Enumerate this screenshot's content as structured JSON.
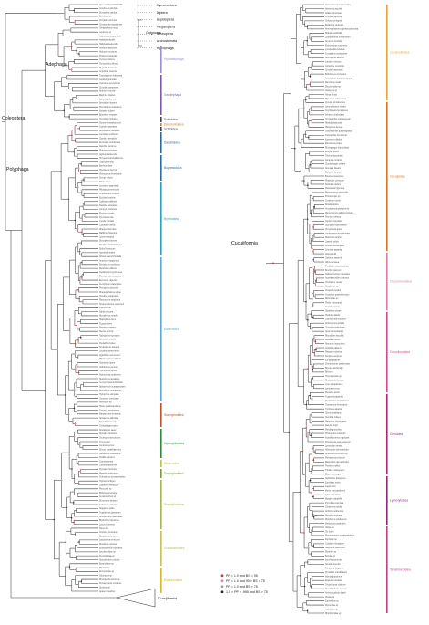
{
  "node_labels": {
    "coleoptera": "Coleoptera",
    "adephaga": "Adephaga",
    "polyphaga": "Polyphaga",
    "cucujiformia": "Cucujiformia"
  },
  "outgroups": {
    "neuropterida": [
      "Hymenoptera",
      "Diptera",
      "Lepidoptera",
      "Megaloptera",
      "Neuroptera",
      "Archostemata",
      "Myxophaga"
    ],
    "bracket_label": "Outgroups",
    "collapsed_label": "Cucujiformia"
  },
  "left_clades": [
    {
      "name": "Hydradephaga",
      "color": "#9b8fd0"
    },
    {
      "name": "Geadephaga",
      "color": "#7b5aa6"
    },
    {
      "name": "Scirtoidea",
      "color": "#444444"
    },
    {
      "name": "Derodontoidea",
      "color": "#d08020"
    },
    {
      "name": "Scirtoidea",
      "color": "#444444"
    },
    {
      "name": "Dascilloidea",
      "color": "#2a6aa8"
    },
    {
      "name": "Buprestoidea",
      "color": "#2a6aa8"
    },
    {
      "name": "Byrrhoidea",
      "color": "#26a3b5"
    },
    {
      "name": "Elateroidea",
      "color": "#5aa8d8"
    },
    {
      "name": "Staphylinoidea",
      "color": "#c0522e"
    },
    {
      "name": "Hydrophiloidea",
      "color": "#2e8b3e"
    },
    {
      "name": "Histeroidea",
      "color": "#b9c24a"
    },
    {
      "name": "Staphylinoidea",
      "color": "#7a9a3a"
    },
    {
      "name": "Staphylinoidea",
      "color": "#a2b84a"
    },
    {
      "name": "Scarabaeoidea",
      "color": "#c8c050"
    },
    {
      "name": "Bostrichoidea",
      "color": "#d8b530"
    }
  ],
  "right_clades": [
    {
      "name": "Coccinelloidea",
      "color": "#e8a43a"
    },
    {
      "name": "Cucujoidea",
      "color": "#d8731f"
    },
    {
      "name": "Chrysomeloidea",
      "color": "#e27aa6"
    },
    {
      "name": "Curculionoidea",
      "color": "#d4469a"
    },
    {
      "name": "Cleroidea",
      "color": "#b0247a"
    },
    {
      "name": "Lymexyloidea",
      "color": "#8a2a7a"
    },
    {
      "name": "Tenebrionoidea",
      "color": "#c53d8d"
    }
  ],
  "legend": [
    {
      "label": "PP = 1.0 and BS = 95",
      "color": "#c0392b"
    },
    {
      "label": "PP = 1.0 and 90 > BS > 75",
      "color": "#e08a8a"
    },
    {
      "label": "PP = 1.0 and BS < 75",
      "color": "#9aa0a6"
    },
    {
      "label": "1.0 > PP > .995 and BS > 75",
      "color": "#2c2c2c"
    }
  ],
  "left_tips": [
    "Apis mellifera NC001566",
    "Anopheles gambiae",
    "Drosophila yakuba",
    "Bombyx mori",
    "Corydalis cornutus",
    "Chrysoperla nipponensis",
    "Tetraphalerus bruchi",
    "Lepicerus sp",
    "Hydroscapha granulum",
    "Haliplus ruficollis",
    "Haliplus lineatocollis",
    "Noterus clavicornis",
    "Hydroporus planus",
    "Dytiscus marginalis",
    "Gyrinus marinus",
    "Orectochilus villosus",
    "Hygrobia hermanni",
    "Amphizoa insolens",
    "Trachypachus holmbergi",
    "Carabus granulatus",
    "Calosoma sycophanta",
    "Cicindela campestris",
    "Nebria brevicollis",
    "Elaphrus riparius",
    "Loricera pilicornis",
    "Bembidion lampros",
    "Pterostichus melanarius",
    "Harpalus rufipes",
    "Brachinus crepitans",
    "Omophron limbatum",
    "Scirtes hemisphaericus",
    "Cyphon coarctatus",
    "Derodontus macularis",
    "Laricobius erichsonii",
    "Clambus armadillo",
    "Eucinetus meridionalis",
    "Dascillus cervinus",
    "Rhipicera femorata",
    "Agrilus planipennis",
    "Chrysochroa fulgidissima",
    "Trachys minuta",
    "Byrrhus pilula",
    "Psephenus herricki",
    "Heterocerus fenestratus",
    "Dryops luridus",
    "Elmis aenea",
    "Limnichus pygmaeus",
    "Ptilodactyla serricollis",
    "Chelonarium ornatum",
    "Eulichas funebris",
    "Callirhipis philiberti",
    "Dascillus elongatus",
    "Lampyris noctiluca",
    "Photinus pyralis",
    "Pyrocoelia rufa",
    "Luciola cruciata",
    "Cantharis rustica",
    "Rhagonycha fulva",
    "Malthinus flaveolus",
    "Lycus trabeatus",
    "Dictyoptera aurora",
    "Omalisus fontisbellaquei",
    "Drilus flavescens",
    "Agriotes lineatus",
    "Athous haemorrhoidalis",
    "Ampedus sanguineus",
    "Pyrophorus noctilucus",
    "Melanotus villosus",
    "Cardiophorus gramineus",
    "Throscus dermestoides",
    "Eucnemis capucina",
    "Cerophytum elateroides",
    "Phengodes plumosa",
    "Rhagophthalmus ohbai",
    "Omethes marginatus",
    "Plastocerus angulosus",
    "Sinopyrophorus schimmeli",
    "Lissomus sp",
    "Silpha obscura",
    "Nicrophorus vespillo",
    "Staphylinus olens",
    "Ocypus olens",
    "Paederus riparius",
    "Stenus comma",
    "Tachyporus hypnorum",
    "Aleochara curtula",
    "Pselaphus heisei",
    "Scydmaenus tarsatus",
    "Leiodes cinnamomea",
    "Agathidium seminulum",
    "Ptilium myrmecophilum",
    "Hydraena riparia",
    "Ochthebius minimus",
    "Hydrophilus piceus",
    "Hydrochara caraboides",
    "Helophorus aquaticus",
    "Cercyon haemorrhoidalis",
    "Sphaeridium scarabaeoides",
    "Spercheus emarginatus",
    "Hydrochus elongatus",
    "Georissus crenulatus",
    "Histeridae sp",
    "Hister quadrimaculatus",
    "Saprinus semistriatus",
    "Margarinotus brunneus",
    "Sphaerites glabratus",
    "Syntelia histeroides",
    "Onthophagus taurus",
    "Scarabaeus sacer",
    "Aphodius fimetarius",
    "Geotrupes stercorarius",
    "Trox scaber",
    "Lucanus cervus",
    "Dorcus parallelipipedus",
    "Melolontha melolontha",
    "Popillia japonica",
    "Cetonia aurata",
    "Oryctes nasicornis",
    "Dynastes hercules",
    "Passalus interruptus",
    "Ochodaeus chrysomeloides",
    "Hybosorus illigeri",
    "Glaphyrus serratulae",
    "Pleocoma sp",
    "Bolboceras armiger",
    "Ceratocanthus sp",
    "Dermestes lardarius",
    "Anthrenus verbasci",
    "Attagenus pellio",
    "Trogoderma granarium",
    "Nosodendron fasciculare",
    "Bostrichus capucinus",
    "Lyctus brunneus",
    "Ptinus fur",
    "Anobium punctatum",
    "Stegobium paniceum",
    "Lasioderma serricorne",
    "Dinoderus minutus",
    "Endecatomus reticulatus",
    "Jacobsoniidae sp",
    "Derodontidae sp",
    "Nosodendron unicolor",
    "Bostrichidae sp",
    "Ptinidae sp",
    "Dermestidae sp",
    "Xylotrogus sp",
    "Rhizopertha dominica",
    "Prostephanus truncatus",
    "Scobicia sp",
    "Apate monachus"
  ],
  "right_tips": [
    "Coccinella septempunctata",
    "Harmonia axyridis",
    "Adalia bipunctata",
    "Propylea japonica",
    "Chilocorus stigma",
    "Epilachna varivestis",
    "Henosepilachna vigintioctopunctata",
    "Rodolia cardinalis",
    "Cryptolaemus montrouzieri",
    "Scymnus frontalis",
    "Endomychus coccineus",
    "Lycoperdina bovistae",
    "Corylophus cassidoides",
    "Sericoderus lateralis",
    "Latridius minutus",
    "Cartodere constricta",
    "Cerylon histeroides",
    "Bothrideres contractus",
    "Anommatus duodecimstriatus",
    "Murmidius ovalis",
    "Discolomidae sp",
    "Akalyptus sp",
    "Alexia pilosa",
    "Mycetaea subterranea",
    "Cucujus cinnaberinus",
    "Laemophloeus monilis",
    "Cryptolestes ferrugineus",
    "Silvanus unidentatus",
    "Oryzaephilus surinamensis",
    "Nitidula bipunctata",
    "Meligethes aeneus",
    "Glischrochilus quadrisignatus",
    "Carpophilus hemipterus",
    "Kateretes rufilabris",
    "Monotoma picipes",
    "Rhizophagus bipustulatus",
    "Erotylus histrio",
    "Tritoma bipustulata",
    "Languria mozardi",
    "Cryptophagus cellaris",
    "Atomaria linearis",
    "Biphyllus lunatus",
    "Byturus tomentosus",
    "Phalacrus corruscus",
    "Sphindus dubius",
    "Passandra trigemina",
    "Phloeostichus denticollis",
    "Protocucujus sp",
    "Cerambyx cerdo",
    "Rosalia alpina",
    "Anoplophora glabripennis",
    "Monochamus galloprovincialis",
    "Prionus coriarius",
    "Leptura maculata",
    "Spondylis buprestoides",
    "Chrysomela populi",
    "Leptinotarsa decemlineata",
    "Diabrotica virgifera",
    "Cassida viridis",
    "Donacia semicuprea",
    "Crioceris asparagi",
    "Lilioceris lilii",
    "Galeruca tanaceti",
    "Altica oleracea",
    "Psylliodes chrysocephala",
    "Bruchus pisorum",
    "Callosobruchus maculatus",
    "Acanthoscelides obtectus",
    "Orsodacne cerasi",
    "Megalopus sp",
    "Vesperus luridus",
    "Oxypeltus quadrispinosus",
    "Disteniidae sp",
    "Philus antennatus",
    "Curculio nucum",
    "Sitophilus oryzae",
    "Hylobius abietis",
    "Otiorhynchus sulcatus",
    "Anthonomus grandis",
    "Cionus scrophulariae",
    "Apion frumentarium",
    "Rhynchites bacchus",
    "Attelabus nitens",
    "Nemonyx lepturoides",
    "Anthribus albinus",
    "Platypus cylindrus",
    "Scolytus scolytus",
    "Ips typographus",
    "Dendroctonus ponderosae",
    "Brentus anchorago",
    "Belus sp",
    "Oxycraspedus sp",
    "Rhopalotria slossoni",
    "Lixus paraplecticus",
    "Larinus sturnus",
    "Pissodes strobi",
    "Trogossita japonica",
    "Tenebroides mauritanicus",
    "Thanasimus formicarius",
    "Trichodes apiarius",
    "Clerus mutillarius",
    "Necrobia rufipes",
    "Malachius bipustulatus",
    "Dasytes niger",
    "Melyris granulata",
    "Phloiophilus edwardsi",
    "Acanthocnemus nigricans",
    "Prionocerus coeruleipennis",
    "Lymexylon navale",
    "Hylecoetus dermestoides",
    "Atractocerus brevicornis",
    "Melittomma sericeum",
    "Elateroides dermestoides",
    "Tenebrio molitor",
    "Tribolium castaneum",
    "Blaps mortisaga",
    "Alphitobius diaperinus",
    "Zophobas morio",
    "Lagria hirta",
    "Meloe proscarabaeus",
    "Lytta vesicatoria",
    "Mylabris variabilis",
    "Pyrochroa coccinea",
    "Oedemera nobilis",
    "Anthicus antherinus",
    "Mordella aculeata",
    "Ripiphorus subdipterus",
    "Melandrya caraboides",
    "Ciidae sp",
    "Cis boleti",
    "Mycetophagus quadripustulatus",
    "Zopherus sp",
    "Colydium elongatum",
    "Salpingus planirostris",
    "Pythidae sp",
    "Boridae sp",
    "Synchroa punctata",
    "Scraptia fuscula",
    "Tetratoma fungorum",
    "Prostomis mandibularis",
    "Aderus populneus",
    "Euglenes oculatus",
    "Trictenotoma childreni",
    "Stenotrachelus aeneus",
    "Archeocrypticus topali",
    "Ulodes sp",
    "Zopheridae sp",
    "Mycteridae sp",
    "Ischaliidae sp",
    "Rhipiphoridae sp"
  ]
}
